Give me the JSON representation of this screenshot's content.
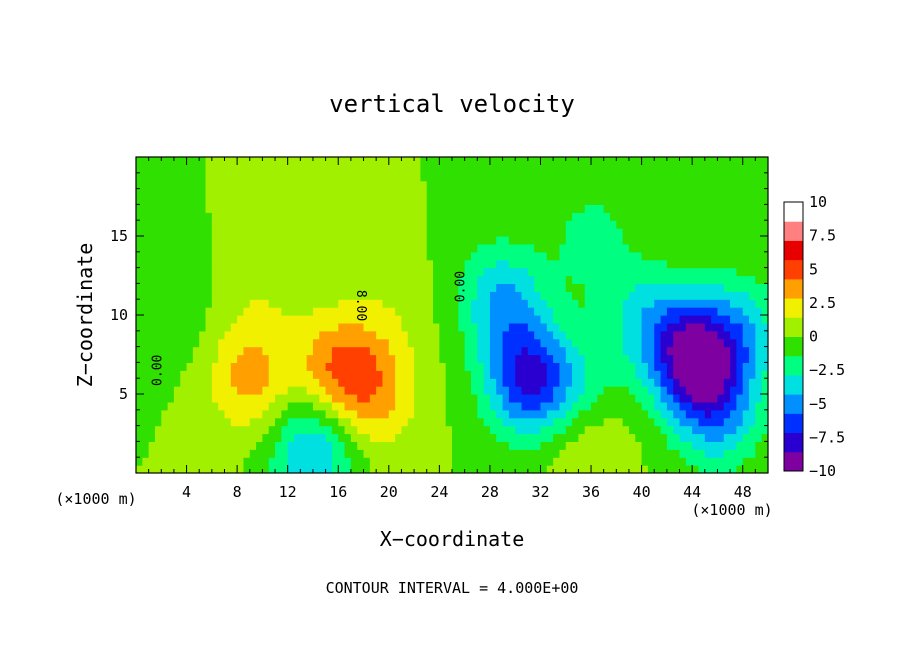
{
  "chart_data": {
    "type": "heatmap",
    "title": "vertical velocity",
    "xlabel": "X−coordinate",
    "ylabel": "Z−coordinate",
    "x_unit_left": "(×1000 m)",
    "x_unit_right": "(×1000 m)",
    "footer": "CONTOUR INTERVAL = 4.000E+00",
    "xlim": [
      0,
      50
    ],
    "ylim": [
      0,
      20
    ],
    "x_ticks": [
      4,
      8,
      12,
      16,
      20,
      24,
      28,
      32,
      36,
      40,
      44,
      48
    ],
    "y_ticks": [
      5,
      10,
      15
    ],
    "colorbar": {
      "range": [
        -10,
        10
      ],
      "labels": [
        "10",
        "7.5",
        "5",
        "2.5",
        "0",
        "−2.5",
        "−5",
        "−7.5",
        "−10"
      ],
      "label_values": [
        10,
        7.5,
        5,
        2.5,
        0,
        -2.5,
        -5,
        -7.5,
        -10
      ],
      "colors": [
        "#7f00a0",
        "#2a00d0",
        "#0030ff",
        "#0090ff",
        "#00e0e0",
        "#00ff80",
        "#30e000",
        "#a0f000",
        "#f0f000",
        "#ffa000",
        "#ff4000",
        "#e80000",
        "#ff8080",
        "#ffffff"
      ]
    },
    "contour_labels": [
      {
        "text": "0.00",
        "x": 2,
        "z": 6.5,
        "angle": -90
      },
      {
        "text": "0.00",
        "x": 26,
        "z": 11.8,
        "angle": -90
      },
      {
        "text": "8.00",
        "x": 17.5,
        "z": 10.6,
        "angle": 90
      }
    ],
    "cells": [
      {
        "x": 9,
        "z": 6,
        "w": 3.6
      },
      {
        "x": 16,
        "z": 6.5,
        "w": 4.5
      },
      {
        "x": 19,
        "z": 5,
        "w": 3
      },
      {
        "x": 20,
        "z": 10,
        "w": 1
      },
      {
        "x": 10,
        "z": 11,
        "w": 1
      },
      {
        "x": 14,
        "z": 1.5,
        "w": -5
      },
      {
        "x": 31,
        "z": 6,
        "w": -7.5
      },
      {
        "x": 29,
        "z": 11,
        "w": -4.5
      },
      {
        "x": 35,
        "z": 5,
        "w": -3
      },
      {
        "x": 40,
        "z": 10,
        "w": -3
      },
      {
        "x": 44,
        "z": 7.5,
        "w": -9.5
      },
      {
        "x": 46,
        "z": 4,
        "w": -5
      },
      {
        "x": 48,
        "z": 9,
        "w": -3.5
      },
      {
        "x": 35.5,
        "z": 2.5,
        "w": 2.5
      },
      {
        "x": 3,
        "z": 10,
        "w": -1
      },
      {
        "x": 36,
        "z": 15,
        "w": -2
      }
    ]
  }
}
